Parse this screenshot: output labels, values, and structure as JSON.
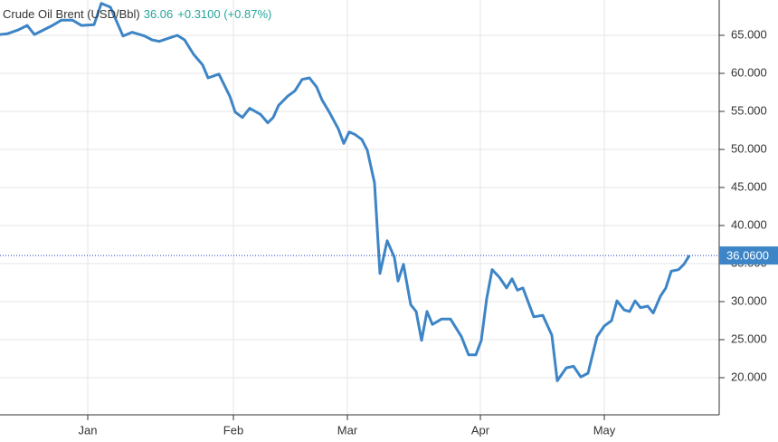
{
  "chart_data": {
    "type": "line",
    "title": "Crude Oil Brent (USD/Bbl)",
    "price": "36.06",
    "change": "+0.3100 (+0.87%)",
    "last_value_label": "36.0600",
    "x": [
      0,
      4,
      10,
      15,
      19,
      24,
      29,
      34,
      40,
      45,
      52,
      56,
      61,
      68,
      73,
      80,
      84,
      88,
      93,
      98,
      102,
      107,
      112,
      115,
      121,
      127,
      130,
      134,
      138,
      144,
      148,
      151,
      154,
      159,
      163,
      167,
      171,
      175,
      178,
      182,
      187,
      190,
      193,
      196,
      200,
      203,
      207,
      210,
      214,
      218,
      220,
      223,
      227,
      230,
      233,
      236,
      239,
      244,
      249,
      255,
      259,
      263,
      266,
      269,
      272,
      276,
      280,
      283,
      286,
      289,
      295,
      300,
      305,
      308,
      313,
      317,
      321,
      325,
      330,
      334,
      338,
      341,
      345,
      348,
      351,
      354,
      358,
      361,
      365,
      368,
      371,
      375,
      378,
      381
    ],
    "series": [
      {
        "name": "Crude Oil Brent",
        "color": "#3d85c6",
        "values": [
          65.1,
          65.2,
          65.7,
          66.3,
          65.1,
          65.7,
          66.3,
          67.0,
          67.0,
          66.3,
          66.4,
          69.2,
          68.7,
          64.9,
          65.4,
          64.9,
          64.4,
          64.2,
          64.6,
          65.0,
          64.4,
          62.5,
          61.1,
          59.4,
          59.9,
          57.0,
          54.9,
          54.2,
          55.4,
          54.6,
          53.5,
          54.2,
          55.8,
          57.0,
          57.7,
          59.2,
          59.4,
          58.2,
          56.5,
          54.9,
          52.7,
          50.8,
          52.3,
          52.0,
          51.3,
          49.9,
          45.6,
          33.7,
          38.0,
          35.8,
          32.7,
          34.9,
          29.6,
          28.7,
          24.9,
          28.7,
          27.0,
          27.7,
          27.7,
          25.4,
          23.0,
          23.0,
          24.9,
          30.4,
          34.2,
          33.2,
          31.8,
          33.0,
          31.5,
          31.8,
          28.0,
          28.2,
          25.6,
          19.6,
          21.3,
          21.5,
          20.1,
          20.6,
          25.4,
          26.8,
          27.5,
          30.1,
          28.9,
          28.7,
          30.1,
          29.2,
          29.4,
          28.5,
          30.7,
          31.8,
          34.0,
          34.2,
          34.9,
          36.06
        ]
      }
    ],
    "xlim": [
      0,
      397.5
    ],
    "xticks": [
      {
        "value": 48.5,
        "label": "Jan"
      },
      {
        "value": 129,
        "label": "Feb"
      },
      {
        "value": 192,
        "label": "Mar"
      },
      {
        "value": 265.5,
        "label": "Apr"
      },
      {
        "value": 334,
        "label": "May"
      }
    ],
    "ylim": [
      15.12,
      69.64
    ],
    "yticks": [
      {
        "value": 20,
        "label": "20.000"
      },
      {
        "value": 25,
        "label": "25.000"
      },
      {
        "value": 30,
        "label": "30.000"
      },
      {
        "value": 35,
        "label": "35.000"
      },
      {
        "value": 40,
        "label": "40.000"
      },
      {
        "value": 45,
        "label": "45.000"
      },
      {
        "value": 50,
        "label": "50.000"
      },
      {
        "value": 55,
        "label": "55.000"
      },
      {
        "value": 60,
        "label": "60.000"
      },
      {
        "value": 65,
        "label": "65.000"
      }
    ],
    "grid": true,
    "last_label_color": "#3d85c6"
  }
}
